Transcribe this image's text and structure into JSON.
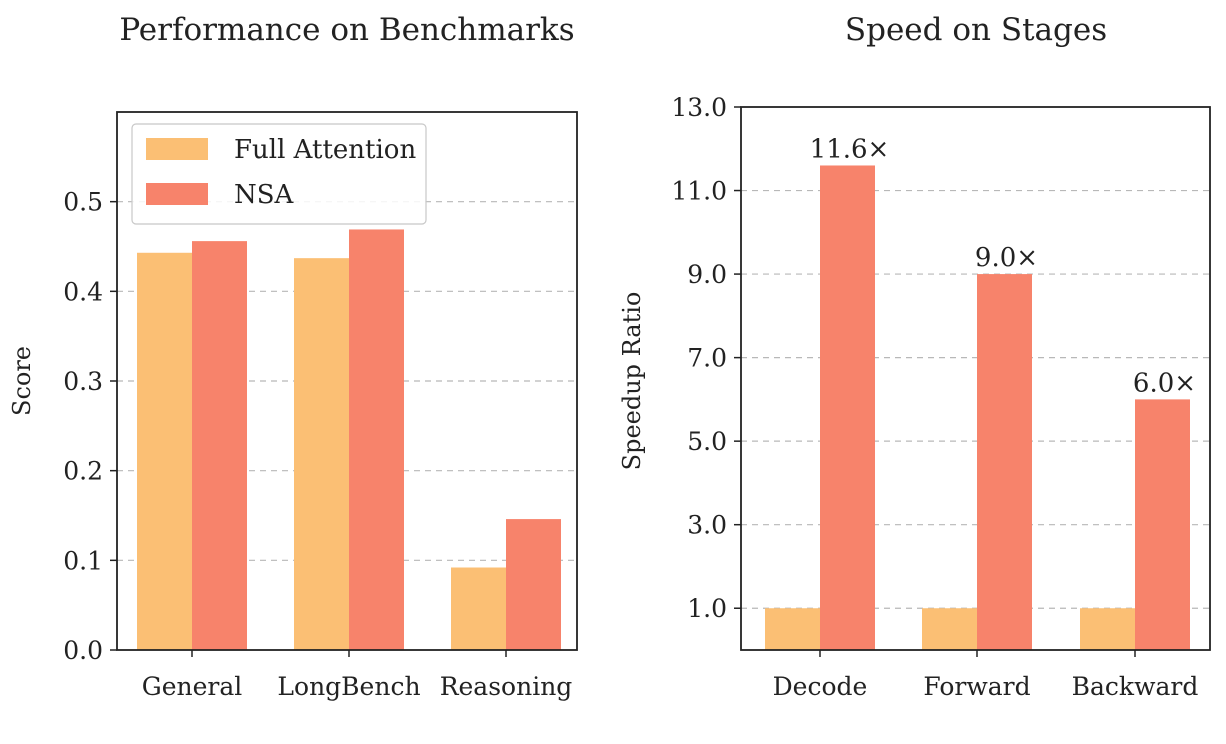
{
  "chart_data": [
    {
      "type": "bar",
      "title": "Performance on Benchmarks",
      "xlabel": "",
      "ylabel": "Score",
      "categories": [
        "General",
        "LongBench",
        "Reasoning"
      ],
      "series": [
        {
          "name": "Full Attention",
          "color": "#fbbf74",
          "values": [
            0.443,
            0.437,
            0.092
          ]
        },
        {
          "name": "NSA",
          "color": "#f7836b",
          "values": [
            0.456,
            0.469,
            0.146
          ]
        }
      ],
      "ylim": [
        0.0,
        0.6
      ],
      "yticks": [
        0.0,
        0.1,
        0.2,
        0.3,
        0.4,
        0.5
      ],
      "ytick_labels": [
        "0.0",
        "0.1",
        "0.2",
        "0.3",
        "0.4",
        "0.5"
      ],
      "grid": true,
      "legend_position": "top-left"
    },
    {
      "type": "bar",
      "title": "Speed on Stages",
      "xlabel": "",
      "ylabel": "Speedup Ratio",
      "categories": [
        "Decode",
        "Forward",
        "Backward"
      ],
      "series": [
        {
          "name": "Full Attention",
          "color": "#fbbf74",
          "values": [
            1.0,
            1.0,
            1.0
          ]
        },
        {
          "name": "NSA",
          "color": "#f7836b",
          "values": [
            11.6,
            9.0,
            6.0
          ],
          "data_labels": [
            "11.6×",
            "9.0×",
            "6.0×"
          ]
        }
      ],
      "ylim": [
        0.0,
        13.0
      ],
      "yticks": [
        1.0,
        3.0,
        5.0,
        7.0,
        9.0,
        11.0,
        13.0
      ],
      "ytick_labels": [
        "1.0",
        "3.0",
        "5.0",
        "7.0",
        "9.0",
        "11.0",
        "13.0"
      ],
      "grid": true
    }
  ]
}
